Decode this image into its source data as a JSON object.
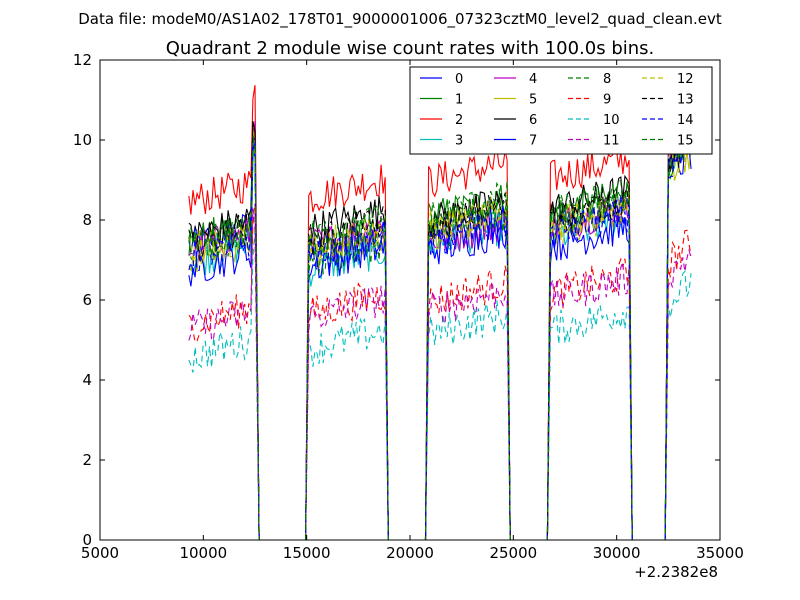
{
  "figure": {
    "suptitle": "Data file: modeM0/AS1A02_178T01_9000001006_07323cztM0_level2_quad_clean.evt"
  },
  "chart_data": {
    "type": "line",
    "title": "Quadrant 2 module wise count rates with 100.0s bins.",
    "xlabel": "",
    "ylabel": "",
    "x_offset_label": "+2.2382e8",
    "x_offset": 223820000,
    "xlim": [
      5000,
      35000
    ],
    "ylim": [
      0,
      12
    ],
    "xticks": [
      5000,
      10000,
      15000,
      20000,
      25000,
      30000,
      35000
    ],
    "xtick_labels": [
      "5000",
      "10000",
      "15000",
      "20000",
      "25000",
      "30000",
      "35000"
    ],
    "yticks": [
      0,
      2,
      4,
      6,
      8,
      10,
      12
    ],
    "ytick_labels": [
      "0",
      "2",
      "4",
      "6",
      "8",
      "10",
      "12"
    ],
    "grid": false,
    "legend_position": "upper-right",
    "legend_columns": 4,
    "segments": [
      [
        9300,
        12550
      ],
      [
        15100,
        18800
      ],
      [
        20900,
        24700
      ],
      [
        26800,
        30600
      ],
      [
        32500,
        33600
      ]
    ],
    "series": [
      {
        "name": "0",
        "color": "#0000ff",
        "style": "solid",
        "levels": [
          7.6,
          7.4,
          7.8,
          8.0,
          10.2
        ]
      },
      {
        "name": "1",
        "color": "#008000",
        "style": "solid",
        "levels": [
          7.7,
          7.5,
          8.3,
          8.4,
          9.7
        ]
      },
      {
        "name": "2",
        "color": "#ff0000",
        "style": "solid",
        "levels": [
          8.7,
          8.8,
          9.2,
          9.3,
          10.1
        ]
      },
      {
        "name": "3",
        "color": "#00bfbf",
        "style": "solid",
        "levels": [
          7.2,
          7.0,
          7.6,
          7.8,
          9.8
        ]
      },
      {
        "name": "4",
        "color": "#bf00bf",
        "style": "solid",
        "levels": [
          7.5,
          7.6,
          7.7,
          8.1,
          9.9
        ]
      },
      {
        "name": "5",
        "color": "#bfbf00",
        "style": "solid",
        "levels": [
          7.3,
          7.4,
          7.9,
          8.1,
          9.5
        ]
      },
      {
        "name": "6",
        "color": "#000000",
        "style": "solid",
        "levels": [
          7.8,
          8.0,
          8.2,
          8.5,
          9.8
        ]
      },
      {
        "name": "7",
        "color": "#0000ff",
        "style": "solid",
        "levels": [
          7.0,
          7.1,
          7.5,
          7.6,
          9.4
        ]
      },
      {
        "name": "8",
        "color": "#008000",
        "style": "dashed",
        "levels": [
          7.4,
          7.2,
          7.9,
          8.2,
          9.6
        ]
      },
      {
        "name": "9",
        "color": "#ff0000",
        "style": "dashed",
        "levels": [
          5.6,
          5.9,
          6.2,
          6.4,
          7.2
        ]
      },
      {
        "name": "10",
        "color": "#00bfbf",
        "style": "dashed",
        "levels": [
          4.8,
          5.0,
          5.4,
          5.5,
          6.2
        ]
      },
      {
        "name": "11",
        "color": "#bf00bf",
        "style": "dashed",
        "levels": [
          5.5,
          5.8,
          6.0,
          6.3,
          6.9
        ]
      },
      {
        "name": "12",
        "color": "#bfbf00",
        "style": "dashed",
        "levels": [
          7.5,
          7.6,
          8.0,
          8.0,
          9.6
        ]
      },
      {
        "name": "13",
        "color": "#000000",
        "style": "dashed",
        "levels": [
          7.6,
          7.7,
          8.1,
          8.3,
          9.7
        ]
      },
      {
        "name": "14",
        "color": "#0000ff",
        "style": "dashed",
        "levels": [
          7.3,
          7.3,
          7.7,
          7.9,
          9.5
        ]
      },
      {
        "name": "15",
        "color": "#008000",
        "style": "dashed",
        "levels": [
          7.6,
          7.8,
          8.3,
          8.4,
          9.8
        ]
      }
    ]
  }
}
